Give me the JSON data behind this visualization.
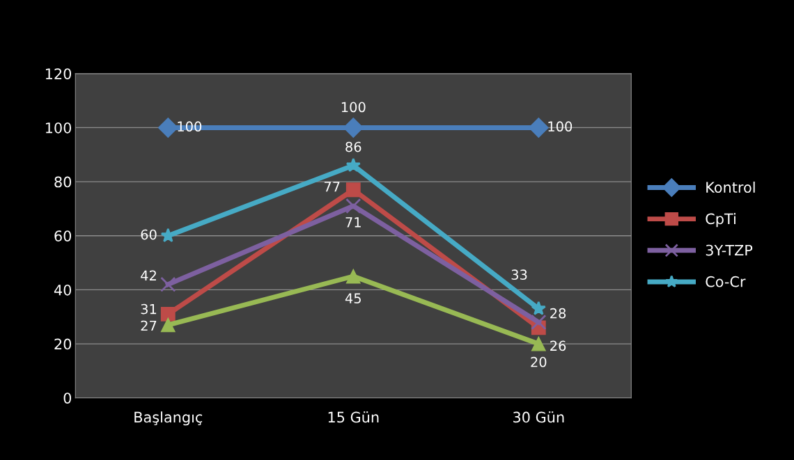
{
  "chart_data": {
    "type": "line",
    "categories": [
      "Başlangıç",
      "15 Gün",
      "30 Gün"
    ],
    "series": [
      {
        "name": "Kontrol",
        "color": "#4a7ebb",
        "marker": "diamond",
        "values": [
          100,
          100,
          100
        ]
      },
      {
        "name": "CpTi",
        "color": "#be4b48",
        "marker": "square",
        "values": [
          31,
          77,
          26
        ]
      },
      {
        "color": "#98b954",
        "marker": "triangle",
        "values": [
          27,
          45,
          20
        ]
      },
      {
        "name": "3Y-TZP",
        "color": "#7d60a0",
        "marker": "cross",
        "values": [
          42,
          71,
          28
        ]
      },
      {
        "name": "Co-Cr",
        "color": "#46aac5",
        "marker": "star",
        "values": [
          60,
          86,
          33
        ]
      }
    ],
    "ylim": [
      0,
      120
    ],
    "yticks": [
      0,
      20,
      40,
      60,
      80,
      100,
      120
    ],
    "grid": "y",
    "legend": "right",
    "data_labels": true,
    "line_style": "solid"
  }
}
